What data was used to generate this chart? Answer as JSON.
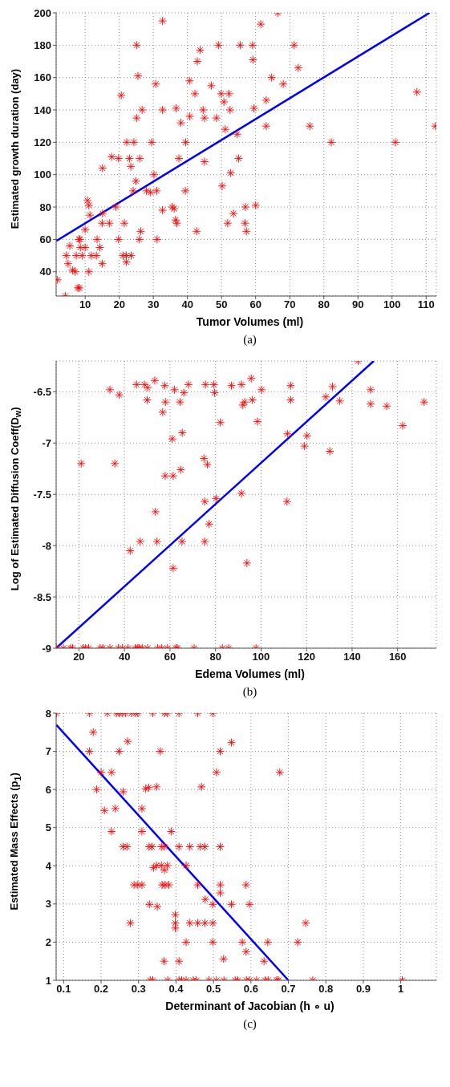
{
  "chart_data": [
    {
      "type": "scatter",
      "xlabel": "Tumor Volumes (ml)",
      "ylabel": "Estimated growth duration (day)",
      "annotations": [
        "(a)"
      ],
      "xlim": [
        1.5,
        113
      ],
      "ylim": [
        25,
        200
      ],
      "xticks": [
        10,
        20,
        30,
        40,
        50,
        60,
        70,
        80,
        90,
        100,
        110
      ],
      "yticks": [
        40,
        60,
        80,
        100,
        120,
        140,
        160,
        180,
        200
      ],
      "grid": true,
      "series": [
        {
          "type": "scatter",
          "marker": "cross",
          "color": "#ff0000",
          "x": [
            32.7,
            25.1,
            25.5,
            20.6,
            26.7,
            25.1,
            30.7,
            32.7,
            36.7,
            38.1,
            40.7,
            40.6,
            42.2,
            42.9,
            43.7,
            44.6,
            45,
            47,
            48.5,
            49.1,
            49.9,
            52.2,
            50.7,
            52.5,
            51.1,
            54.6,
            55.5,
            55,
            59.1,
            59.2,
            59.5,
            61.5,
            63.1,
            63.1,
            64.7,
            66.5,
            68.1,
            71.3,
            72.5,
            75.9,
            82.2,
            101,
            107.3,
            112.7,
            22.2,
            24.3,
            29.5,
            39.5,
            37.5,
            45,
            17.8,
            19.8,
            23,
            26,
            15.1,
            23.4,
            30.2,
            50.2,
            52.7,
            24.9,
            24.1,
            28,
            29.2,
            31,
            39.4,
            10.7,
            11.1,
            11.4,
            10,
            15.1,
            15,
            17.1,
            21.5,
            19,
            32.7,
            35.5,
            36.1,
            36.5,
            36.9,
            42.7,
            26.3,
            25.9,
            19.8,
            31.1,
            13.5,
            8.2,
            8.5,
            8.6,
            10,
            14.3,
            5.5,
            4.5,
            7.4,
            9.1,
            11.8,
            13.3,
            5,
            15,
            21.1,
            22.1,
            23.5,
            22.1,
            6.3,
            7.1,
            11.1,
            1.9,
            4.2,
            7.9,
            8.3,
            51.8,
            53.5,
            57,
            60,
            56.9,
            57.3
          ],
          "values": [
            195,
            180,
            161,
            149,
            140,
            135,
            156,
            140,
            141,
            132,
            136,
            158,
            150,
            170,
            177,
            140,
            135,
            155,
            135,
            180,
            150,
            150,
            145,
            140,
            128,
            125,
            180,
            110,
            180,
            171,
            141,
            193,
            146,
            130,
            160,
            200,
            156,
            180,
            166,
            130,
            120,
            120,
            151,
            130,
            120,
            120,
            120,
            120,
            110,
            108,
            111,
            110,
            110,
            110,
            104,
            105,
            100,
            93,
            101,
            96,
            90,
            90,
            89,
            90,
            90,
            84,
            81,
            75,
            66,
            76,
            70,
            70,
            70,
            80,
            78,
            80,
            79,
            72,
            70,
            65,
            65,
            60,
            60,
            60,
            60,
            60,
            60,
            55,
            55,
            55,
            56,
            50,
            50,
            50,
            50,
            50,
            45,
            45,
            50,
            50,
            50,
            46,
            41,
            40,
            40,
            35,
            25,
            30,
            30,
            70,
            76,
            80,
            81,
            70,
            65
          ]
        },
        {
          "type": "line",
          "color": "#0000ff",
          "x": [
            1.5,
            111
          ],
          "values": [
            59,
            200
          ]
        }
      ]
    },
    {
      "type": "scatter",
      "xlabel": "Edema Volumes (ml)",
      "ylabel": "Log of Estimated Diffusion Coeff(D$_{w}$)",
      "annotations": [
        "(b)"
      ],
      "xlim": [
        10,
        177
      ],
      "ylim": [
        -9,
        -6.2
      ],
      "xticks": [
        20,
        40,
        60,
        80,
        100,
        120,
        140,
        160
      ],
      "yticks": [
        -9,
        -8.5,
        -8,
        -7.5,
        -7,
        -6.5
      ],
      "grid": true,
      "series": [
        {
          "type": "scatter",
          "marker": "cross",
          "color": "#ff0000",
          "x": [
            33.6,
            37.7,
            45.3,
            48.8,
            50.2,
            53.3,
            57.7,
            62,
            66.1,
            68.1,
            75.6,
            79.3,
            79.6,
            87,
            91.4,
            95.7,
            100.2,
            113,
            131.4,
            142.6,
            148.1,
            50,
            58,
            64.4,
            56.8,
            92,
            92.8,
            96.2,
            113,
            128.4,
            134.6,
            148.1,
            155.2,
            171.6,
            82.1,
            98.4,
            162.2,
            111.6,
            120.2,
            65.4,
            61,
            119.1,
            130.2,
            21,
            35.8,
            74.9,
            76.4,
            57.9,
            61.4,
            64.7,
            91.4,
            111.4,
            80.2,
            75.3,
            53.6,
            77.2,
            46.9,
            54.3,
            65.3,
            75.3,
            42.5,
            61.4,
            93.8,
            10.1,
            13.2,
            16.3,
            17.2,
            21.9,
            22.8,
            24.3,
            29.3,
            30.5,
            33.6,
            37.3,
            39.1,
            41.6,
            44.7,
            45.9,
            46.5,
            47.8,
            50.2,
            54.6,
            56.4,
            58.9,
            62.6,
            63.2,
            70.6,
            83,
            85.8,
            97.8
          ],
          "values": [
            -6.48,
            -6.53,
            -6.43,
            -6.43,
            -6.46,
            -6.39,
            -6.44,
            -6.48,
            -6.51,
            -6.43,
            -6.43,
            -6.43,
            -6.51,
            -6.44,
            -6.43,
            -6.37,
            -6.48,
            -6.44,
            -6.45,
            -6.2,
            -6.48,
            -6.58,
            -6.6,
            -6.6,
            -6.7,
            -6.63,
            -6.6,
            -6.58,
            -6.58,
            -6.55,
            -6.59,
            -6.62,
            -6.64,
            -6.6,
            -6.8,
            -6.79,
            -6.83,
            -6.91,
            -6.93,
            -6.9,
            -6.96,
            -7.03,
            -7.08,
            -7.2,
            -7.2,
            -7.15,
            -7.21,
            -7.32,
            -7.32,
            -7.26,
            -7.49,
            -7.57,
            -7.54,
            -7.57,
            -7.67,
            -7.79,
            -7.96,
            -7.96,
            -7.96,
            -7.96,
            -8.05,
            -8.22,
            -8.17,
            -9,
            -9,
            -9,
            -9,
            -9,
            -9,
            -9,
            -9,
            -9,
            -9,
            -9,
            -9,
            -9,
            -9,
            -9,
            -9,
            -9,
            -9,
            -9,
            -9,
            -9,
            -9,
            -9,
            -9,
            -9,
            -9,
            -9
          ]
        },
        {
          "type": "line",
          "color": "#0000ff",
          "x": [
            10,
            149.5
          ],
          "values": [
            -9,
            -6.2
          ]
        }
      ]
    },
    {
      "type": "scatter",
      "xlabel": "Determinant of Jacobian (h ∘ u)",
      "ylabel": "Estimated Mass Effects (p$_{1}$)",
      "annotations": [
        "(c)"
      ],
      "xlim": [
        0.08,
        1.095
      ],
      "ylim": [
        1,
        8
      ],
      "xticks": [
        0.1,
        0.2,
        0.3,
        0.4,
        0.5,
        0.6,
        0.7,
        0.8,
        0.9,
        1
      ],
      "yticks": [
        1,
        2,
        3,
        4,
        5,
        6,
        7,
        8
      ],
      "grid": true,
      "series": [
        {
          "type": "scatter",
          "marker": "cross",
          "color": "#ff0000",
          "x": [
            0.081,
            0.169,
            0.217,
            0.241,
            0.248,
            0.256,
            0.265,
            0.281,
            0.292,
            0.298,
            0.338,
            0.369,
            0.377,
            0.408,
            0.458,
            0.498,
            0.179,
            0.271,
            0.548,
            0.169,
            0.248,
            0.358,
            0.518,
            0.2,
            0.228,
            0.508,
            0.677,
            0.188,
            0.259,
            0.319,
            0.327,
            0.348,
            0.468,
            0.209,
            0.238,
            0.309,
            0.228,
            0.309,
            0.387,
            0.259,
            0.269,
            0.328,
            0.336,
            0.361,
            0.369,
            0.408,
            0.437,
            0.465,
            0.477,
            0.518,
            0.34,
            0.348,
            0.361,
            0.369,
            0.377,
            0.427,
            0.288,
            0.298,
            0.309,
            0.363,
            0.371,
            0.381,
            0.458,
            0.518,
            0.587,
            0.518,
            0.478,
            0.329,
            0.35,
            0.498,
            0.548,
            0.596,
            0.398,
            0.278,
            0.398,
            0.437,
            0.458,
            0.477,
            0.498,
            0.746,
            0.398,
            0.427,
            0.498,
            0.577,
            0.645,
            0.725,
            0.587,
            0.368,
            0.408,
            0.635,
            0.527,
            0.331,
            0.338,
            0.378,
            0.408,
            0.415,
            0.427,
            0.446,
            0.454,
            0.488,
            0.508,
            0.528,
            0.558,
            0.565,
            0.588,
            0.596,
            0.615,
            0.638,
            0.646,
            0.669,
            0.673,
            0.765,
            1.004
          ],
          "values": [
            8,
            8,
            8,
            8,
            8,
            8,
            8,
            8,
            8,
            8,
            8,
            8,
            8,
            8,
            8,
            8,
            7.5,
            7.26,
            7.23,
            7,
            7,
            7,
            7,
            6.45,
            6.45,
            6.45,
            6.45,
            6,
            5.94,
            6.02,
            6.05,
            6.07,
            6.07,
            5.45,
            5.5,
            5.5,
            4.9,
            4.9,
            4.9,
            4.5,
            4.5,
            4.5,
            4.5,
            4.5,
            4.5,
            4.5,
            4.5,
            4.5,
            4.5,
            4.5,
            3.95,
            4.01,
            4.01,
            3.89,
            4.01,
            4.01,
            3.5,
            3.5,
            3.5,
            3.5,
            3.5,
            3.5,
            3.5,
            3.5,
            3.5,
            3.29,
            3.12,
            2.99,
            2.93,
            2.99,
            2.99,
            2.99,
            2.72,
            2.5,
            2.5,
            2.5,
            2.5,
            2.5,
            2.5,
            2.5,
            2.37,
            2,
            2,
            2,
            2,
            2,
            1.75,
            1.5,
            1.5,
            1.5,
            1.56,
            1,
            1,
            1,
            1,
            1,
            1,
            1,
            1,
            1,
            1,
            1,
            1,
            1,
            1,
            1,
            1,
            1,
            1,
            1,
            1,
            1,
            1
          ]
        },
        {
          "type": "line",
          "color": "#0000ff",
          "x": [
            0.08,
            0.7
          ],
          "values": [
            7.7,
            1
          ]
        }
      ]
    }
  ]
}
